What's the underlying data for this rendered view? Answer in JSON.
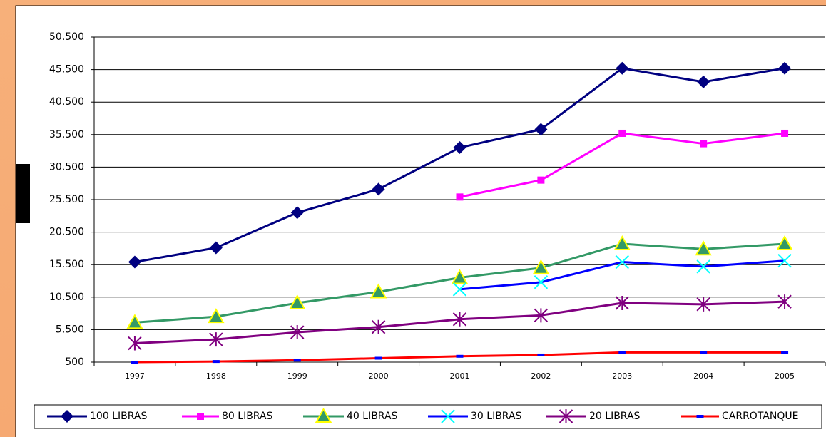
{
  "chart_data": {
    "type": "line",
    "categories": [
      "1997",
      "1998",
      "1999",
      "2000",
      "2001",
      "2002",
      "2003",
      "2004",
      "2005"
    ],
    "ylim": [
      500,
      50500
    ],
    "yticks": [
      {
        "value": 500,
        "label": "500"
      },
      {
        "value": 5500,
        "label": "5.500"
      },
      {
        "value": 10500,
        "label": "10.500"
      },
      {
        "value": 15500,
        "label": "15.500"
      },
      {
        "value": 20500,
        "label": "20.500"
      },
      {
        "value": 25500,
        "label": "25.500"
      },
      {
        "value": 30500,
        "label": "30.500"
      },
      {
        "value": 35500,
        "label": "35.500"
      },
      {
        "value": 40500,
        "label": "40.500"
      },
      {
        "value": 45500,
        "label": "45.500"
      },
      {
        "value": 50500,
        "label": "50.500"
      }
    ],
    "grid": true,
    "legend": "bottom",
    "series": [
      {
        "name": "100 LIBRAS",
        "color": "#000080",
        "marker": "diamond",
        "marker_color": "#000080",
        "values": [
          15900,
          18100,
          23500,
          27100,
          33500,
          36300,
          45700,
          43600,
          45700
        ]
      },
      {
        "name": "80 LIBRAS",
        "color": "#ff00ff",
        "marker": "square",
        "marker_color": "#ff00ff",
        "values": [
          null,
          null,
          null,
          null,
          25900,
          28500,
          35700,
          34100,
          35700
        ]
      },
      {
        "name": "40 LIBRAS",
        "color": "#339966",
        "marker": "triangle",
        "marker_color": "#ffff00",
        "values": [
          6600,
          7500,
          9600,
          11300,
          13500,
          15000,
          18700,
          17900,
          18700
        ]
      },
      {
        "name": "30 LIBRAS",
        "color": "#0000ff",
        "marker": "x",
        "marker_color": "#00ffff",
        "values": [
          null,
          null,
          null,
          null,
          11700,
          12800,
          15900,
          15200,
          16100
        ]
      },
      {
        "name": "20 LIBRAS",
        "color": "#800080",
        "marker": "star",
        "marker_color": "#800080",
        "values": [
          3400,
          4000,
          5100,
          5900,
          7100,
          7700,
          9600,
          9400,
          9800
        ]
      },
      {
        "name": "CARROTANQUE",
        "color": "#ff0000",
        "marker": "dash",
        "marker_color": "#0000ff",
        "values": [
          500,
          600,
          800,
          1100,
          1400,
          1600,
          2000,
          2000,
          2000
        ]
      }
    ]
  }
}
